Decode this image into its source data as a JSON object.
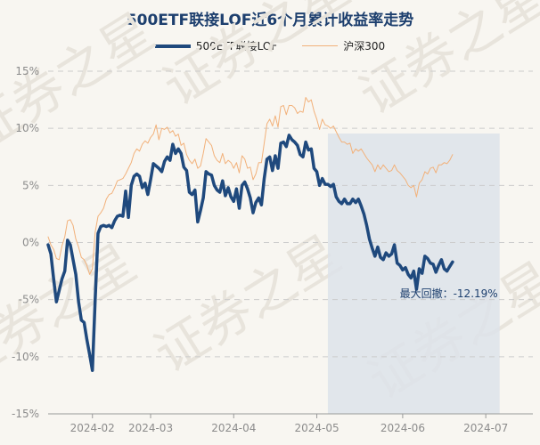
{
  "chart_data": {
    "type": "line",
    "title": "500ETF联接LOF近6个月累计收益率走势",
    "watermark": "证券之星",
    "ylim": [
      -15,
      15
    ],
    "y_ticks": [
      15,
      10,
      5,
      0,
      -5,
      -10,
      -15
    ],
    "y_tick_labels": [
      "15%",
      "10%",
      "5%",
      "0%",
      "-5%",
      "-10%",
      "-15%"
    ],
    "x_range_days": [
      0,
      175
    ],
    "x_ticks": [
      {
        "label": "2024-02",
        "day": 16
      },
      {
        "label": "2024-03",
        "day": 37
      },
      {
        "label": "2024-04",
        "day": 67
      },
      {
        "label": "2024-05",
        "day": 97
      },
      {
        "label": "2024-06",
        "day": 128
      },
      {
        "label": "2024-07",
        "day": 158
      }
    ],
    "drawdown": {
      "label": "最大回撤：-12.19%",
      "start_day": 101,
      "end_day": 163,
      "fill_color": "#dde3ea"
    },
    "series": [
      {
        "name": "500ETF联接LOF",
        "color": "#1f497d",
        "width": 3.5,
        "points": [
          [
            0,
            -0.2
          ],
          [
            1,
            -1.0
          ],
          [
            2,
            -3.2
          ],
          [
            3,
            -5.2
          ],
          [
            4,
            -4.2
          ],
          [
            5,
            -3.2
          ],
          [
            6,
            -2.5
          ],
          [
            7,
            0.2
          ],
          [
            8,
            -0.2
          ],
          [
            9,
            -1.5
          ],
          [
            10,
            -2.8
          ],
          [
            11,
            -5.2
          ],
          [
            12,
            -6.8
          ],
          [
            13,
            -7.0
          ],
          [
            14,
            -8.5
          ],
          [
            15,
            -9.8
          ],
          [
            16,
            -11.2
          ],
          [
            17,
            -5.0
          ],
          [
            18,
            0.8
          ],
          [
            19,
            1.4
          ],
          [
            20,
            1.5
          ],
          [
            21,
            1.4
          ],
          [
            22,
            1.5
          ],
          [
            23,
            1.3
          ],
          [
            24,
            1.9
          ],
          [
            25,
            2.3
          ],
          [
            26,
            2.4
          ],
          [
            27,
            2.3
          ],
          [
            28,
            4.5
          ],
          [
            29,
            2.2
          ],
          [
            30,
            5.0
          ],
          [
            31,
            5.8
          ],
          [
            32,
            6.0
          ],
          [
            33,
            5.8
          ],
          [
            34,
            4.8
          ],
          [
            35,
            5.2
          ],
          [
            36,
            4.2
          ],
          [
            37,
            5.5
          ],
          [
            38,
            6.9
          ],
          [
            39,
            6.7
          ],
          [
            40,
            6.5
          ],
          [
            41,
            6.2
          ],
          [
            42,
            7.1
          ],
          [
            43,
            7.5
          ],
          [
            44,
            7.2
          ],
          [
            45,
            8.6
          ],
          [
            46,
            7.8
          ],
          [
            47,
            8.2
          ],
          [
            48,
            7.8
          ],
          [
            49,
            6.6
          ],
          [
            50,
            6.3
          ],
          [
            51,
            4.4
          ],
          [
            52,
            4.2
          ],
          [
            53,
            4.6
          ],
          [
            54,
            1.8
          ],
          [
            55,
            2.8
          ],
          [
            56,
            3.9
          ],
          [
            57,
            6.2
          ],
          [
            58,
            6.0
          ],
          [
            59,
            5.9
          ],
          [
            60,
            5.0
          ],
          [
            61,
            4.6
          ],
          [
            62,
            4.4
          ],
          [
            63,
            5.4
          ],
          [
            64,
            4.1
          ],
          [
            65,
            4.8
          ],
          [
            66,
            4.0
          ],
          [
            67,
            3.6
          ],
          [
            68,
            4.7
          ],
          [
            69,
            3.0
          ],
          [
            70,
            5.0
          ],
          [
            71,
            5.3
          ],
          [
            72,
            4.7
          ],
          [
            73,
            3.9
          ],
          [
            74,
            2.6
          ],
          [
            75,
            3.5
          ],
          [
            76,
            3.9
          ],
          [
            77,
            3.3
          ],
          [
            78,
            5.6
          ],
          [
            79,
            7.3
          ],
          [
            80,
            7.5
          ],
          [
            81,
            6.3
          ],
          [
            82,
            7.6
          ],
          [
            83,
            6.5
          ],
          [
            84,
            8.7
          ],
          [
            85,
            8.8
          ],
          [
            86,
            8.4
          ],
          [
            87,
            9.4
          ],
          [
            88,
            9.0
          ],
          [
            89,
            8.8
          ],
          [
            90,
            8.5
          ],
          [
            91,
            7.7
          ],
          [
            92,
            7.5
          ],
          [
            93,
            8.8
          ],
          [
            94,
            8.1
          ],
          [
            95,
            8.2
          ],
          [
            96,
            6.5
          ],
          [
            97,
            6.2
          ],
          [
            98,
            5.0
          ],
          [
            99,
            5.6
          ],
          [
            100,
            5.1
          ],
          [
            101,
            5.1
          ],
          [
            102,
            4.9
          ],
          [
            103,
            5.1
          ],
          [
            104,
            4.0
          ],
          [
            105,
            3.6
          ],
          [
            106,
            3.4
          ],
          [
            107,
            3.8
          ],
          [
            108,
            3.4
          ],
          [
            109,
            3.4
          ],
          [
            110,
            3.8
          ],
          [
            111,
            3.5
          ],
          [
            112,
            3.8
          ],
          [
            113,
            3.2
          ],
          [
            114,
            2.5
          ],
          [
            115,
            1.5
          ],
          [
            116,
            0.3
          ],
          [
            117,
            -0.5
          ],
          [
            118,
            -1.2
          ],
          [
            119,
            -0.4
          ],
          [
            120,
            -1.3
          ],
          [
            121,
            -1.5
          ],
          [
            122,
            -0.9
          ],
          [
            123,
            -1.2
          ],
          [
            124,
            -1.0
          ],
          [
            125,
            -0.2
          ],
          [
            126,
            -1.8
          ],
          [
            127,
            -2.0
          ],
          [
            128,
            -2.4
          ],
          [
            129,
            -2.2
          ],
          [
            130,
            -2.8
          ],
          [
            131,
            -3.1
          ],
          [
            132,
            -2.5
          ],
          [
            133,
            -4.1
          ],
          [
            134,
            -2.3
          ],
          [
            135,
            -2.7
          ],
          [
            136,
            -1.2
          ],
          [
            137,
            -1.4
          ],
          [
            138,
            -1.8
          ],
          [
            139,
            -1.9
          ],
          [
            140,
            -2.6
          ],
          [
            141,
            -2.0
          ],
          [
            142,
            -1.5
          ],
          [
            143,
            -2.3
          ],
          [
            144,
            -2.5
          ],
          [
            145,
            -2.1
          ],
          [
            146,
            -1.7
          ]
        ]
      },
      {
        "name": "沪深300",
        "color": "#f2b17a",
        "width": 1,
        "points": [
          [
            0,
            0.5
          ],
          [
            1,
            -0.2
          ],
          [
            2,
            -0.6
          ],
          [
            3,
            -1.4
          ],
          [
            4,
            -1.5
          ],
          [
            5,
            -0.3
          ],
          [
            6,
            0.5
          ],
          [
            7,
            1.9
          ],
          [
            8,
            2.0
          ],
          [
            9,
            1.5
          ],
          [
            10,
            0.3
          ],
          [
            11,
            -0.4
          ],
          [
            12,
            -1.3
          ],
          [
            13,
            -1.5
          ],
          [
            14,
            -2.0
          ],
          [
            15,
            -2.8
          ],
          [
            16,
            -2.3
          ],
          [
            17,
            0.9
          ],
          [
            18,
            2.3
          ],
          [
            19,
            2.6
          ],
          [
            20,
            3.0
          ],
          [
            21,
            3.8
          ],
          [
            22,
            4.2
          ],
          [
            23,
            4.3
          ],
          [
            24,
            4.8
          ],
          [
            25,
            5.4
          ],
          [
            26,
            5.5
          ],
          [
            27,
            5.6
          ],
          [
            28,
            6.0
          ],
          [
            29,
            6.5
          ],
          [
            30,
            7.0
          ],
          [
            31,
            7.8
          ],
          [
            32,
            8.2
          ],
          [
            33,
            8.0
          ],
          [
            34,
            8.6
          ],
          [
            35,
            8.9
          ],
          [
            36,
            8.7
          ],
          [
            37,
            9.2
          ],
          [
            38,
            9.5
          ],
          [
            39,
            10.3
          ],
          [
            40,
            9.0
          ],
          [
            41,
            10.0
          ],
          [
            42,
            9.9
          ],
          [
            43,
            10.1
          ],
          [
            44,
            9.6
          ],
          [
            45,
            9.8
          ],
          [
            46,
            9.3
          ],
          [
            47,
            9.5
          ],
          [
            48,
            8.5
          ],
          [
            49,
            8.7
          ],
          [
            50,
            7.7
          ],
          [
            51,
            7.2
          ],
          [
            52,
            6.9
          ],
          [
            53,
            7.3
          ],
          [
            54,
            6.5
          ],
          [
            55,
            6.7
          ],
          [
            56,
            7.8
          ],
          [
            57,
            9.1
          ],
          [
            58,
            8.8
          ],
          [
            59,
            8.5
          ],
          [
            60,
            7.6
          ],
          [
            61,
            7.2
          ],
          [
            62,
            7.0
          ],
          [
            63,
            7.8
          ],
          [
            64,
            6.9
          ],
          [
            65,
            7.2
          ],
          [
            66,
            7.0
          ],
          [
            67,
            6.5
          ],
          [
            68,
            7.0
          ],
          [
            69,
            6.1
          ],
          [
            70,
            7.6
          ],
          [
            71,
            7.3
          ],
          [
            72,
            6.5
          ],
          [
            73,
            6.6
          ],
          [
            74,
            5.5
          ],
          [
            75,
            6.0
          ],
          [
            76,
            7.0
          ],
          [
            77,
            7.0
          ],
          [
            78,
            8.7
          ],
          [
            79,
            10.4
          ],
          [
            80,
            10.8
          ],
          [
            81,
            10.2
          ],
          [
            82,
            11.1
          ],
          [
            83,
            10.1
          ],
          [
            84,
            11.9
          ],
          [
            85,
            12.0
          ],
          [
            86,
            11.2
          ],
          [
            87,
            12.0
          ],
          [
            88,
            12.0
          ],
          [
            89,
            11.8
          ],
          [
            90,
            11.3
          ],
          [
            91,
            11.5
          ],
          [
            92,
            11.4
          ],
          [
            93,
            12.7
          ],
          [
            94,
            12.3
          ],
          [
            95,
            12.5
          ],
          [
            96,
            11.5
          ],
          [
            97,
            10.8
          ],
          [
            98,
            9.9
          ],
          [
            99,
            10.8
          ],
          [
            100,
            10.3
          ],
          [
            101,
            10.2
          ],
          [
            102,
            10.0
          ],
          [
            103,
            10.2
          ],
          [
            104,
            9.7
          ],
          [
            105,
            9.2
          ],
          [
            106,
            8.8
          ],
          [
            107,
            8.8
          ],
          [
            108,
            8.6
          ],
          [
            109,
            8.7
          ],
          [
            110,
            7.8
          ],
          [
            111,
            8.2
          ],
          [
            112,
            8.0
          ],
          [
            113,
            8.2
          ],
          [
            114,
            7.8
          ],
          [
            115,
            7.4
          ],
          [
            116,
            7.1
          ],
          [
            117,
            6.8
          ],
          [
            118,
            6.2
          ],
          [
            119,
            6.8
          ],
          [
            120,
            6.4
          ],
          [
            121,
            6.8
          ],
          [
            122,
            6.5
          ],
          [
            123,
            6.2
          ],
          [
            124,
            6.3
          ],
          [
            125,
            6.8
          ],
          [
            126,
            6.3
          ],
          [
            127,
            6.1
          ],
          [
            128,
            5.8
          ],
          [
            129,
            5.5
          ],
          [
            130,
            5.0
          ],
          [
            131,
            4.8
          ],
          [
            132,
            5.0
          ],
          [
            133,
            4.0
          ],
          [
            134,
            5.2
          ],
          [
            135,
            5.5
          ],
          [
            136,
            6.2
          ],
          [
            137,
            6.0
          ],
          [
            138,
            6.5
          ],
          [
            139,
            6.6
          ],
          [
            140,
            6.1
          ],
          [
            141,
            6.8
          ],
          [
            142,
            6.8
          ],
          [
            143,
            7.0
          ],
          [
            144,
            6.9
          ],
          [
            145,
            7.2
          ],
          [
            146,
            7.7
          ]
        ]
      }
    ]
  }
}
